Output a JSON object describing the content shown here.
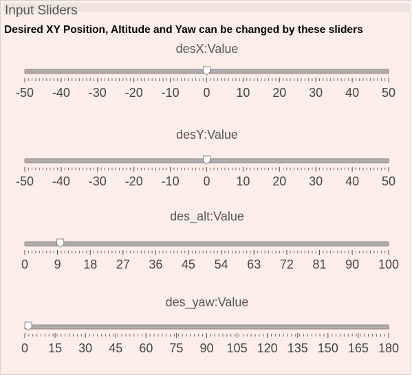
{
  "panel": {
    "title": "Input Sliders",
    "subtitle": "Desired XY Position, Altitude and Yaw can be changed by these sliders",
    "sliders": [
      {
        "label": "desX:Value",
        "min": -50,
        "max": 50,
        "value": 0,
        "ticks": [
          -50,
          -40,
          -30,
          -20,
          -10,
          0,
          10,
          20,
          30,
          40,
          50
        ]
      },
      {
        "label": "desY:Value",
        "min": -50,
        "max": 50,
        "value": 0,
        "ticks": [
          -50,
          -40,
          -30,
          -20,
          -10,
          0,
          10,
          20,
          30,
          40,
          50
        ]
      },
      {
        "label": "des_alt:Value",
        "min": 0,
        "max": 100,
        "value": 9,
        "ticks": [
          0,
          9,
          18,
          27,
          36,
          45,
          54,
          63,
          72,
          81,
          90,
          100
        ]
      },
      {
        "label": "des_yaw:Value",
        "min": 0,
        "max": 180,
        "value": 0,
        "ticks": [
          0,
          15,
          30,
          45,
          60,
          75,
          90,
          105,
          120,
          135,
          150,
          165,
          180
        ]
      }
    ]
  }
}
